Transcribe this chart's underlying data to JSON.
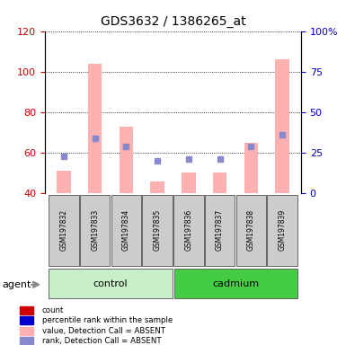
{
  "title": "GDS3632 / 1386265_at",
  "samples": [
    "GSM197832",
    "GSM197833",
    "GSM197834",
    "GSM197835",
    "GSM197836",
    "GSM197837",
    "GSM197838",
    "GSM197839"
  ],
  "groups": [
    "control",
    "control",
    "control",
    "control",
    "cadmium",
    "cadmium",
    "cadmium",
    "cadmium"
  ],
  "group_labels": [
    "control",
    "cadmium"
  ],
  "bar_bottom": 40,
  "pink_bar_top": [
    51,
    104,
    73,
    46,
    50,
    50,
    65,
    106
  ],
  "blue_square_y": [
    58,
    67,
    63,
    56,
    57,
    57,
    63,
    69
  ],
  "left_ylim": [
    40,
    120
  ],
  "left_yticks": [
    40,
    60,
    80,
    100,
    120
  ],
  "right_ylim": [
    0,
    100
  ],
  "right_yticks": [
    0,
    25,
    50,
    75,
    100
  ],
  "left_tick_color": "#cc0000",
  "right_tick_color": "#0000cc",
  "pink_bar_color": "#ffb0b0",
  "blue_sq_color": "#8888cc",
  "grid_color": "#000000",
  "agent_label": "agent",
  "legend_items": [
    {
      "color": "#cc0000",
      "label": "count"
    },
    {
      "color": "#0000cc",
      "label": "percentile rank within the sample"
    },
    {
      "color": "#ffb0b0",
      "label": "value, Detection Call = ABSENT"
    },
    {
      "color": "#8888cc",
      "label": "rank, Detection Call = ABSENT"
    }
  ],
  "control_color": "#c8f0c8",
  "cadmium_color": "#44cc44",
  "sample_box_color": "#cccccc",
  "sample_box_edge": "#666666"
}
